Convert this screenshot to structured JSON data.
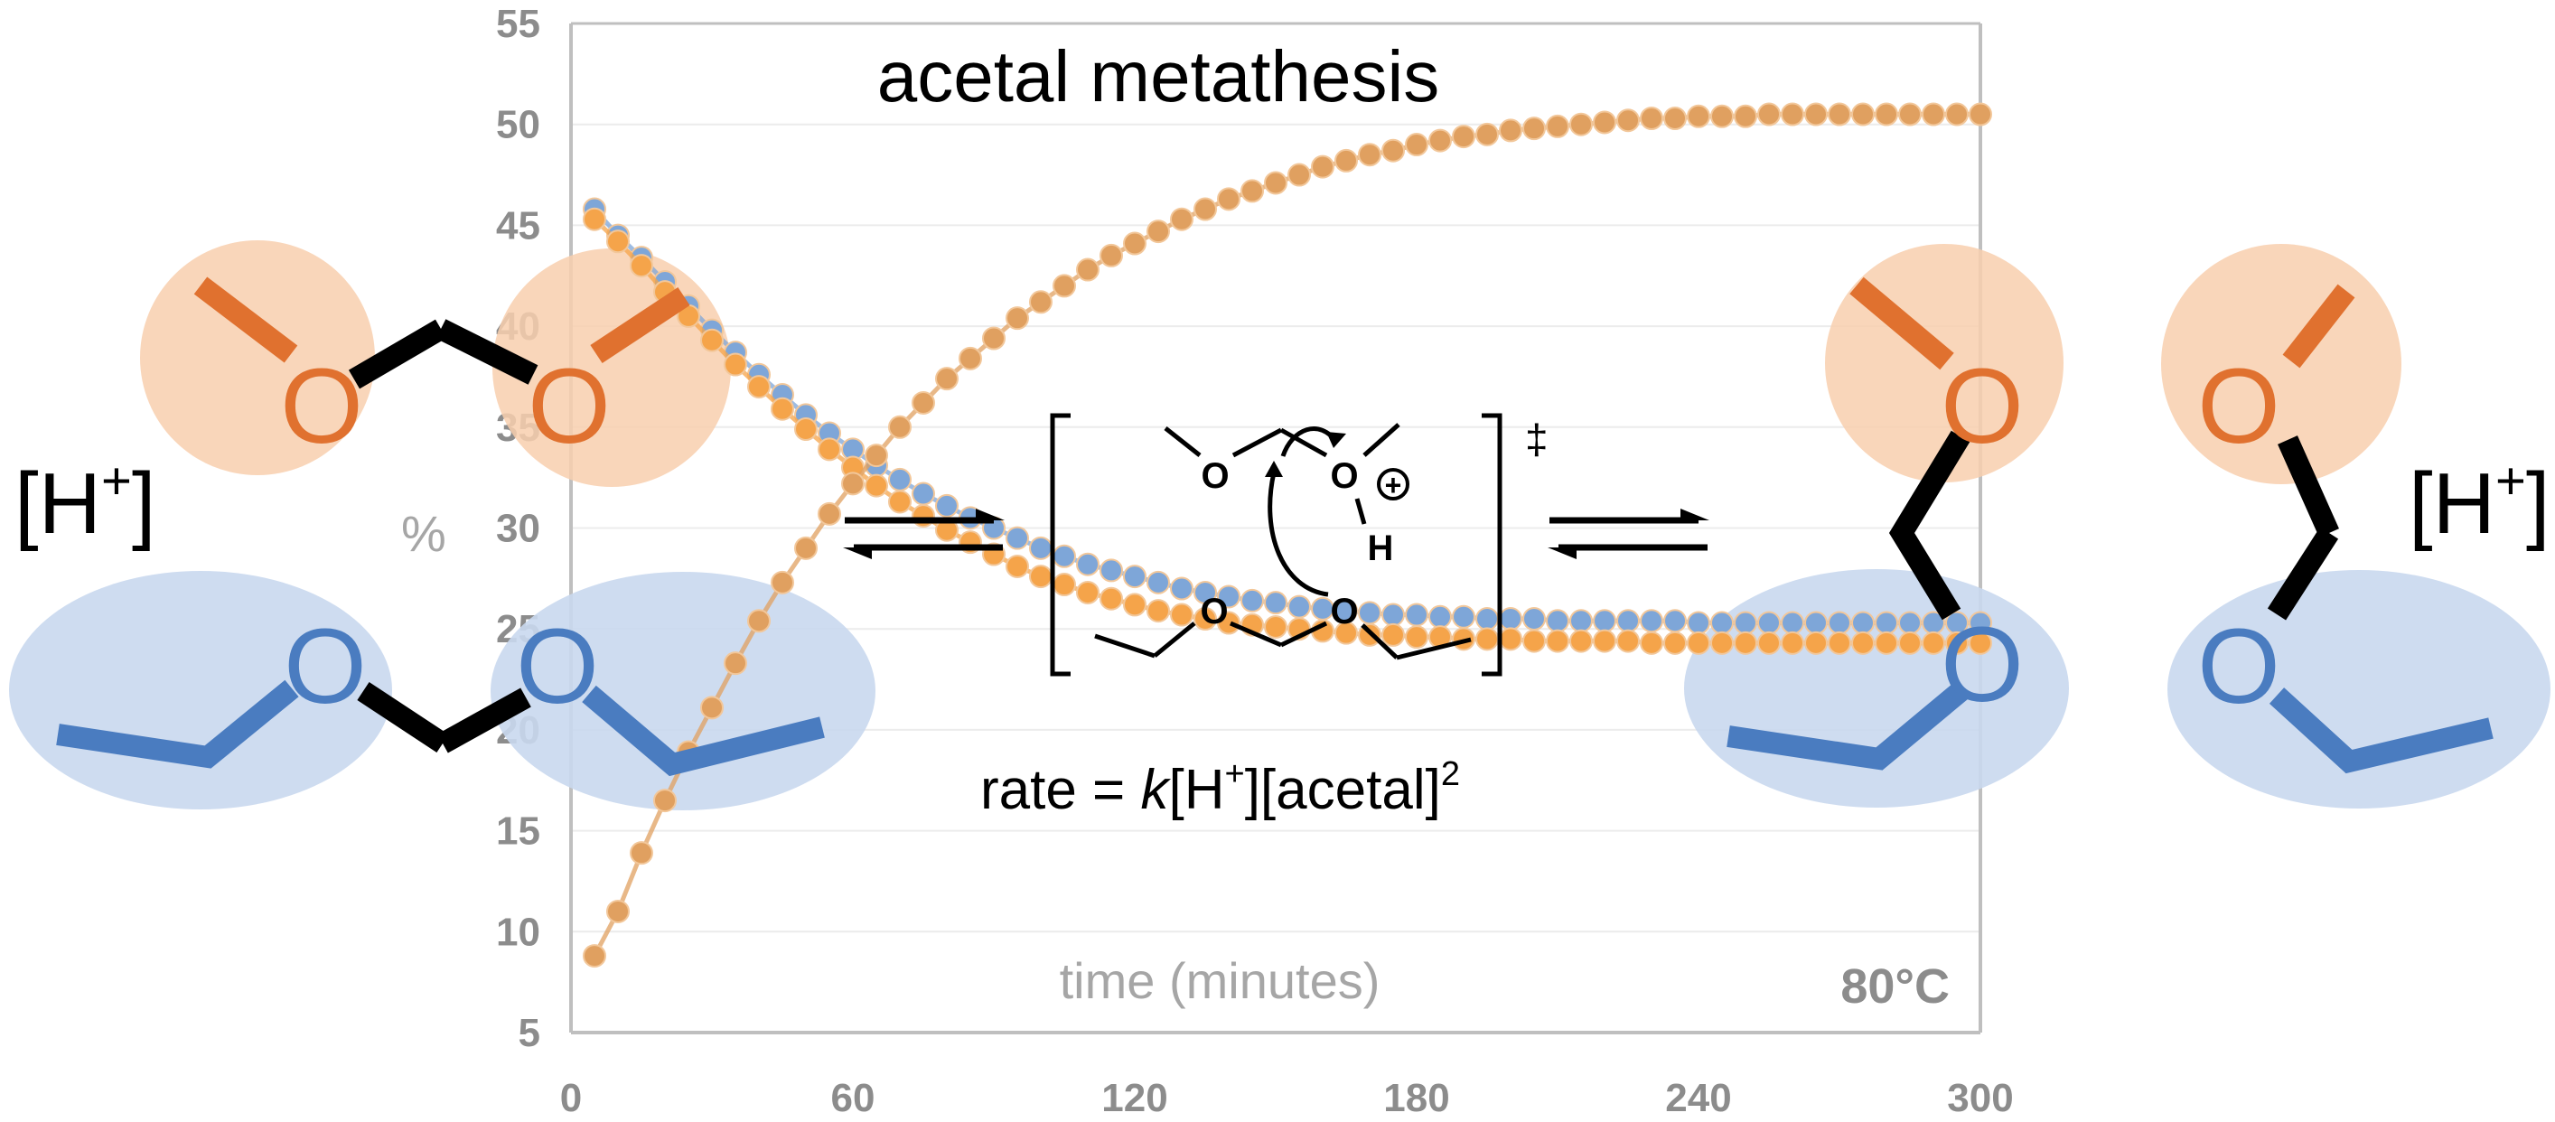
{
  "chart_data": {
    "type": "scatter",
    "title": "acetal metathesis",
    "xlabel": "time (minutes)",
    "ylabel": "%",
    "xlim": [
      0,
      300
    ],
    "ylim": [
      5,
      55
    ],
    "x_ticks": [
      "0",
      "60",
      "120",
      "180",
      "240",
      "300"
    ],
    "y_ticks": [
      "5",
      "10",
      "15",
      "20",
      "25",
      "30",
      "35",
      "40",
      "45",
      "50",
      "55"
    ],
    "grid": true,
    "annotations": {
      "temperature": "80°C",
      "rate_prefix": "rate = ",
      "rate_k": "k",
      "rate_mid": "[H",
      "rate_plus": "+",
      "rate_end": "][acetal]",
      "rate_sq": "2",
      "catalyst_left_base": "[H",
      "catalyst_left_sup": "+",
      "catalyst_left_close": "]",
      "catalyst_right_base": "[H",
      "catalyst_right_sup": "+",
      "catalyst_right_close": "]",
      "dagger": "‡",
      "ts_O1": "O",
      "ts_O2": "O",
      "ts_H": "H",
      "ts_O3": "O",
      "ts_O4": "O",
      "ts_charge": "+"
    },
    "molecule_labels": {
      "m1_o1": "O",
      "m1_o2": "O",
      "m1_o3": "O",
      "m1_o4": "O",
      "m2_o1": "O",
      "m2_o2": "O",
      "m3_o1": "O",
      "m3_o2": "O"
    },
    "series": [
      {
        "color": "#7ea6d8",
        "x": [
          5,
          10,
          15,
          20,
          25,
          30,
          35,
          40,
          45,
          50,
          55,
          60,
          65,
          70,
          75,
          80,
          85,
          90,
          95,
          100,
          105,
          110,
          115,
          120,
          125,
          130,
          135,
          140,
          145,
          150,
          155,
          160,
          165,
          170,
          175,
          180,
          185,
          190,
          195,
          200,
          205,
          210,
          215,
          220,
          225,
          230,
          235,
          240,
          245,
          250,
          255,
          260,
          265,
          270,
          275,
          280,
          285,
          290,
          295,
          300
        ],
        "y": [
          45.8,
          44.5,
          43.4,
          42.2,
          41.0,
          39.8,
          38.7,
          37.6,
          36.6,
          35.6,
          34.7,
          33.9,
          33.1,
          32.4,
          31.7,
          31.1,
          30.5,
          30.0,
          29.5,
          29.0,
          28.6,
          28.2,
          27.9,
          27.6,
          27.3,
          27.0,
          26.8,
          26.6,
          26.4,
          26.3,
          26.1,
          26.0,
          25.9,
          25.8,
          25.7,
          25.7,
          25.6,
          25.6,
          25.5,
          25.5,
          25.5,
          25.4,
          25.4,
          25.4,
          25.4,
          25.4,
          25.4,
          25.3,
          25.3,
          25.3,
          25.3,
          25.3,
          25.3,
          25.3,
          25.3,
          25.3,
          25.3,
          25.3,
          25.3,
          25.3
        ]
      },
      {
        "color": "#f5a44a",
        "x": [
          5,
          10,
          15,
          20,
          25,
          30,
          35,
          40,
          45,
          50,
          55,
          60,
          65,
          70,
          75,
          80,
          85,
          90,
          95,
          100,
          105,
          110,
          115,
          120,
          125,
          130,
          135,
          140,
          145,
          150,
          155,
          160,
          165,
          170,
          175,
          180,
          185,
          190,
          195,
          200,
          205,
          210,
          215,
          220,
          225,
          230,
          235,
          240,
          245,
          250,
          255,
          260,
          265,
          270,
          275,
          280,
          285,
          290,
          295,
          300
        ],
        "y": [
          45.3,
          44.2,
          43.0,
          41.7,
          40.5,
          39.3,
          38.1,
          37.0,
          35.9,
          34.9,
          33.9,
          33.0,
          32.1,
          31.3,
          30.6,
          29.9,
          29.3,
          28.7,
          28.1,
          27.6,
          27.2,
          26.8,
          26.5,
          26.2,
          25.9,
          25.7,
          25.5,
          25.3,
          25.2,
          25.1,
          25.0,
          24.9,
          24.8,
          24.7,
          24.7,
          24.6,
          24.6,
          24.5,
          24.5,
          24.5,
          24.4,
          24.4,
          24.4,
          24.4,
          24.4,
          24.3,
          24.3,
          24.3,
          24.3,
          24.3,
          24.3,
          24.3,
          24.3,
          24.3,
          24.3,
          24.3,
          24.3,
          24.3,
          24.3,
          24.3
        ]
      },
      {
        "color": "#e0a060",
        "x": [
          5,
          10,
          15,
          20,
          25,
          30,
          35,
          40,
          45,
          50,
          55,
          60,
          65,
          70,
          75,
          80,
          85,
          90,
          95,
          100,
          105,
          110,
          115,
          120,
          125,
          130,
          135,
          140,
          145,
          150,
          155,
          160,
          165,
          170,
          175,
          180,
          185,
          190,
          195,
          200,
          205,
          210,
          215,
          220,
          225,
          230,
          235,
          240,
          245,
          250,
          255,
          260,
          265,
          270,
          275,
          280,
          285,
          290,
          295,
          300
        ],
        "y": [
          8.8,
          11.0,
          13.9,
          16.5,
          18.9,
          21.1,
          23.3,
          25.4,
          27.3,
          29.0,
          30.7,
          32.2,
          33.6,
          35.0,
          36.2,
          37.4,
          38.4,
          39.4,
          40.4,
          41.2,
          42.0,
          42.8,
          43.5,
          44.1,
          44.7,
          45.3,
          45.8,
          46.3,
          46.7,
          47.1,
          47.5,
          47.9,
          48.2,
          48.5,
          48.7,
          49.0,
          49.2,
          49.4,
          49.5,
          49.7,
          49.8,
          49.9,
          50.0,
          50.1,
          50.2,
          50.3,
          50.3,
          50.4,
          50.4,
          50.4,
          50.5,
          50.5,
          50.5,
          50.5,
          50.5,
          50.5,
          50.5,
          50.5,
          50.5,
          50.5
        ]
      }
    ]
  }
}
